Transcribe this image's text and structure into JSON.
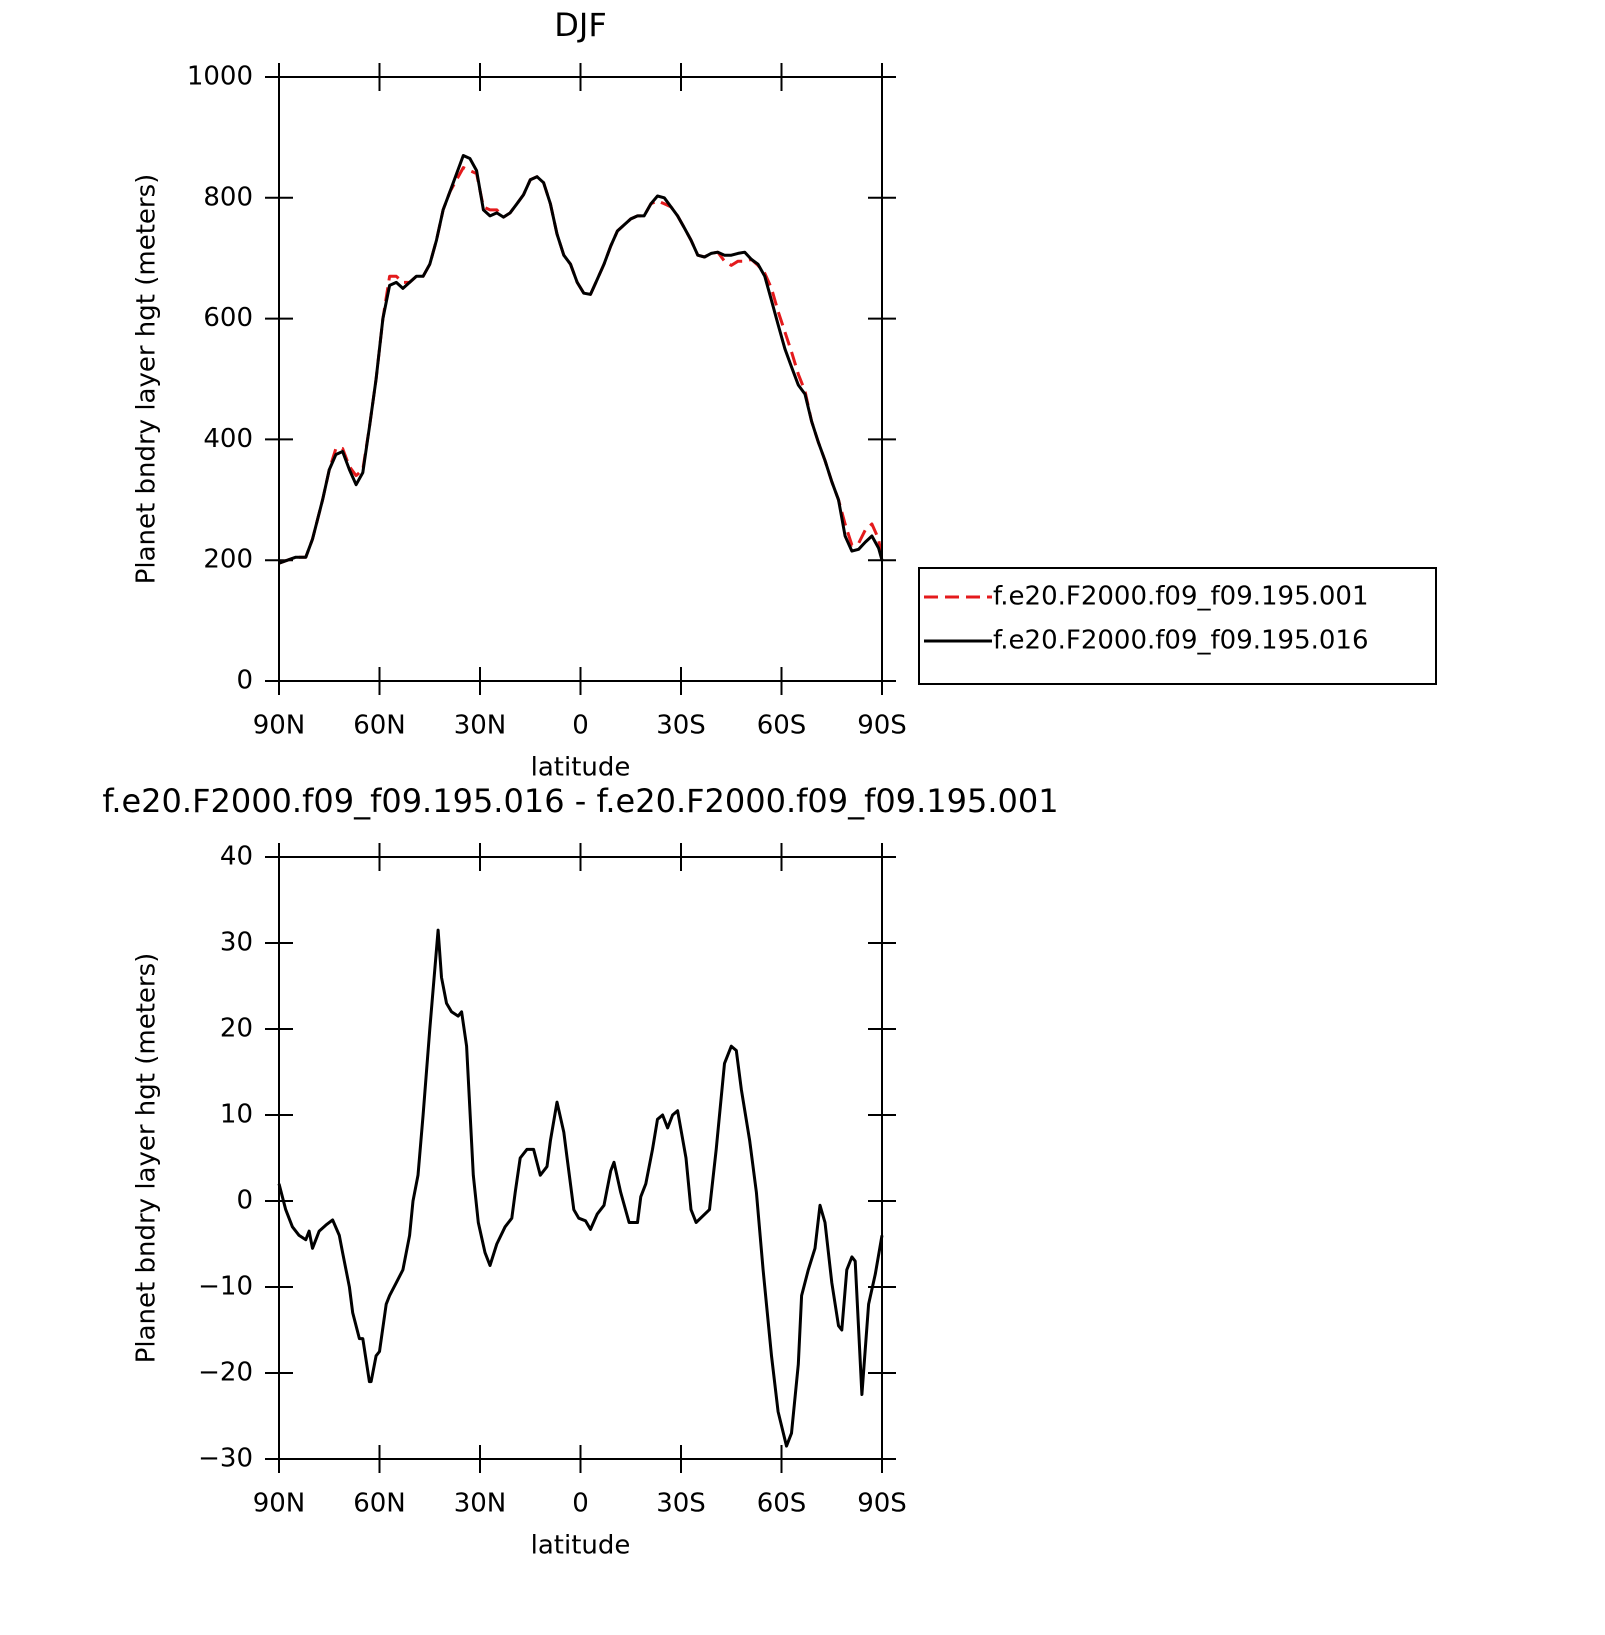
{
  "chart_data": [
    {
      "type": "line",
      "title": "DJF",
      "xlabel": "latitude",
      "ylabel": "Planet bndry layer hgt (meters)",
      "xlim": [
        90,
        -90
      ],
      "ylim": [
        0,
        1000
      ],
      "xticks": [
        {
          "value": 90,
          "label": "90N"
        },
        {
          "value": 60,
          "label": "60N"
        },
        {
          "value": 30,
          "label": "30N"
        },
        0,
        {
          "value": -30,
          "label": "30S"
        },
        {
          "value": -60,
          "label": "60S"
        },
        {
          "value": -90,
          "label": "90S"
        }
      ],
      "yticks": [
        0,
        200,
        400,
        600,
        800,
        1000
      ],
      "legend": "right",
      "x": [
        90,
        85,
        82,
        80,
        77,
        75,
        73,
        71,
        69,
        67,
        65,
        63,
        61,
        59,
        57,
        55,
        53,
        51,
        49,
        47,
        45,
        43,
        41,
        39,
        37,
        35,
        33,
        31,
        29,
        27,
        25,
        23,
        21,
        19,
        17,
        15,
        13,
        11,
        9,
        7,
        5,
        3,
        1,
        -1,
        -3,
        -5,
        -7,
        -9,
        -11,
        -13,
        -15,
        -17,
        -19,
        -21,
        -23,
        -25,
        -27,
        -29,
        -31,
        -33,
        -35,
        -37,
        -39,
        -41,
        -43,
        -45,
        -47,
        -49,
        -51,
        -53,
        -55,
        -57,
        -59,
        -61,
        -63,
        -65,
        -67,
        -69,
        -71,
        -73,
        -75,
        -77,
        -79,
        -81,
        -83,
        -85,
        -87,
        -89,
        -90
      ],
      "series": [
        {
          "name": "f.e20.F2000.f09_f09.195.001",
          "color": "#e41a1c",
          "style": "dashed",
          "values": [
            195,
            205,
            205,
            235,
            300,
            350,
            385,
            385,
            355,
            340,
            350,
            420,
            500,
            600,
            670,
            670,
            660,
            660,
            670,
            670,
            690,
            730,
            780,
            810,
            830,
            850,
            845,
            840,
            785,
            780,
            780,
            768,
            775,
            790,
            805,
            830,
            835,
            825,
            790,
            740,
            705,
            690,
            660,
            642,
            640,
            665,
            690,
            720,
            745,
            755,
            765,
            770,
            770,
            790,
            795,
            790,
            785,
            770,
            750,
            730,
            705,
            702,
            708,
            710,
            695,
            688,
            695,
            695,
            698,
            688,
            675,
            650,
            612,
            578,
            545,
            508,
            480,
            430,
            395,
            365,
            330,
            300,
            260,
            225,
            228,
            250,
            260,
            235,
            200
          ]
        },
        {
          "name": "f.e20.F2000.f09_f09.195.016",
          "color": "#000000",
          "style": "solid",
          "values": [
            195,
            205,
            205,
            235,
            300,
            350,
            375,
            380,
            350,
            325,
            345,
            420,
            500,
            600,
            655,
            660,
            650,
            660,
            670,
            670,
            690,
            730,
            780,
            810,
            840,
            870,
            865,
            845,
            780,
            770,
            775,
            768,
            775,
            790,
            805,
            830,
            835,
            825,
            790,
            740,
            705,
            690,
            660,
            642,
            640,
            665,
            690,
            720,
            745,
            755,
            765,
            770,
            770,
            790,
            803,
            800,
            785,
            770,
            750,
            730,
            705,
            702,
            708,
            710,
            705,
            705,
            708,
            710,
            698,
            690,
            670,
            630,
            590,
            550,
            520,
            490,
            475,
            430,
            395,
            365,
            330,
            300,
            240,
            215,
            218,
            230,
            240,
            220,
            200
          ]
        }
      ]
    },
    {
      "type": "line",
      "title": "f.e20.F2000.f09_f09.195.016 - f.e20.F2000.f09_f09.195.001",
      "xlabel": "latitude",
      "ylabel": "Planet bndry layer hgt (meters)",
      "xlim": [
        90,
        -90
      ],
      "ylim": [
        -30,
        40
      ],
      "xticks": [
        {
          "value": 90,
          "label": "90N"
        },
        {
          "value": 60,
          "label": "60N"
        },
        {
          "value": 30,
          "label": "30N"
        },
        0,
        {
          "value": -30,
          "label": "30S"
        },
        {
          "value": -60,
          "label": "60S"
        },
        {
          "value": -90,
          "label": "90S"
        }
      ],
      "yticks": [
        {
          "value": -30,
          "label": "−30"
        },
        {
          "value": -20,
          "label": "−20"
        },
        {
          "value": -10,
          "label": "−10"
        },
        0,
        10,
        20,
        30,
        40
      ],
      "x": [
        90,
        88,
        86,
        84,
        82,
        81,
        80,
        78,
        76,
        74,
        72,
        71,
        69,
        68,
        66,
        65,
        63,
        62.5,
        61,
        60,
        58,
        57,
        55,
        53,
        51,
        50,
        48.5,
        47,
        45,
        42.5,
        41.5,
        40,
        38.5,
        36.5,
        35.5,
        34,
        32,
        30.5,
        28.5,
        27,
        25,
        22.5,
        20.5,
        19.5,
        18,
        16,
        14,
        12,
        10,
        9,
        7,
        5,
        4,
        2,
        0.5,
        -1.5,
        -3,
        -5,
        -7,
        -9,
        -10,
        -12,
        -14.5,
        -17,
        -18,
        -19.5,
        -21.5,
        -23,
        -24.5,
        -26,
        -27.5,
        -29,
        -31.5,
        -33,
        -34.5,
        -38.5,
        -40.5,
        -43,
        -45,
        -46.5,
        -48,
        -50.5,
        -52.5,
        -54.5,
        -57,
        -59,
        -61.5,
        -63,
        -65,
        -66,
        -68,
        -70,
        -71.5,
        -73,
        -75,
        -77,
        -78,
        -79.5,
        -81,
        -82,
        -84,
        -86,
        -88,
        -90
      ],
      "series": [
        {
          "color": "#000000",
          "style": "solid",
          "values": [
            2,
            -1,
            -3,
            -4,
            -4.5,
            -3.5,
            -5.5,
            -3.5,
            -2.8,
            -2.2,
            -4,
            -6,
            -10,
            -13,
            -16,
            -16,
            -21,
            -21,
            -18,
            -17.5,
            -12,
            -11,
            -9.5,
            -8,
            -4,
            0,
            3,
            10,
            20,
            31.5,
            26,
            23,
            22,
            21.5,
            22,
            18,
            3,
            -2.5,
            -6,
            -7.5,
            -5,
            -3,
            -2,
            1,
            5,
            6,
            6,
            3,
            4,
            7,
            11.5,
            8,
            5,
            -1,
            -2,
            -2.3,
            -3.3,
            -1.5,
            -0.5,
            3.5,
            4.5,
            1,
            -2.5,
            -2.5,
            0.5,
            2,
            6,
            9.5,
            10,
            8.5,
            10,
            10.5,
            5,
            -1,
            -2.5,
            -1,
            6,
            16,
            18,
            17.5,
            13,
            7,
            1,
            -8,
            -18,
            -24.5,
            -28.5,
            -27,
            -19,
            -11,
            -8,
            -5.5,
            -0.5,
            -2.5,
            -9.5,
            -14.5,
            -15,
            -8,
            -6.5,
            -7,
            -22.5,
            -12,
            -8.5,
            -4
          ]
        }
      ]
    }
  ]
}
